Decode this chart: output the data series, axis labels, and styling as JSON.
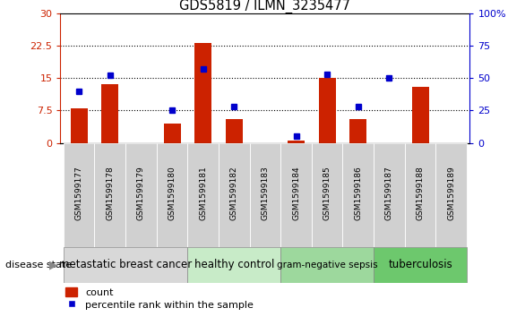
{
  "title": "GDS5819 / ILMN_3235477",
  "samples": [
    "GSM1599177",
    "GSM1599178",
    "GSM1599179",
    "GSM1599180",
    "GSM1599181",
    "GSM1599182",
    "GSM1599183",
    "GSM1599184",
    "GSM1599185",
    "GSM1599186",
    "GSM1599187",
    "GSM1599188",
    "GSM1599189"
  ],
  "counts": [
    8.0,
    13.5,
    0.0,
    4.5,
    23.0,
    5.5,
    0.0,
    0.5,
    15.0,
    5.5,
    0.0,
    13.0,
    0.0
  ],
  "percentile_ranks": [
    40,
    52,
    null,
    25,
    57,
    28,
    null,
    5,
    53,
    28,
    50,
    null,
    null
  ],
  "bar_color": "#cc2200",
  "dot_color": "#0000cc",
  "ylim_left": [
    0,
    30
  ],
  "ylim_right": [
    0,
    100
  ],
  "yticks_left": [
    0,
    7.5,
    15,
    22.5,
    30
  ],
  "yticks_right": [
    0,
    25,
    50,
    75,
    100
  ],
  "yticklabels_left": [
    "0",
    "7.5",
    "15",
    "22.5",
    "30"
  ],
  "yticklabels_right": [
    "0",
    "25",
    "50",
    "75",
    "100%"
  ],
  "disease_groups": [
    {
      "label": "metastatic breast cancer",
      "start": 0,
      "end": 4,
      "color": "#d8d8d8",
      "fontsize": 8.5
    },
    {
      "label": "healthy control",
      "start": 4,
      "end": 7,
      "color": "#c8ebc8",
      "fontsize": 8.5
    },
    {
      "label": "gram-negative sepsis",
      "start": 7,
      "end": 10,
      "color": "#9dd89d",
      "fontsize": 7.5
    },
    {
      "label": "tuberculosis",
      "start": 10,
      "end": 13,
      "color": "#6dc86d",
      "fontsize": 8.5
    }
  ],
  "disease_label": "disease state",
  "legend_count_label": "count",
  "legend_percentile_label": "percentile rank within the sample",
  "sample_box_color": "#d0d0d0",
  "background_color": "#ffffff"
}
